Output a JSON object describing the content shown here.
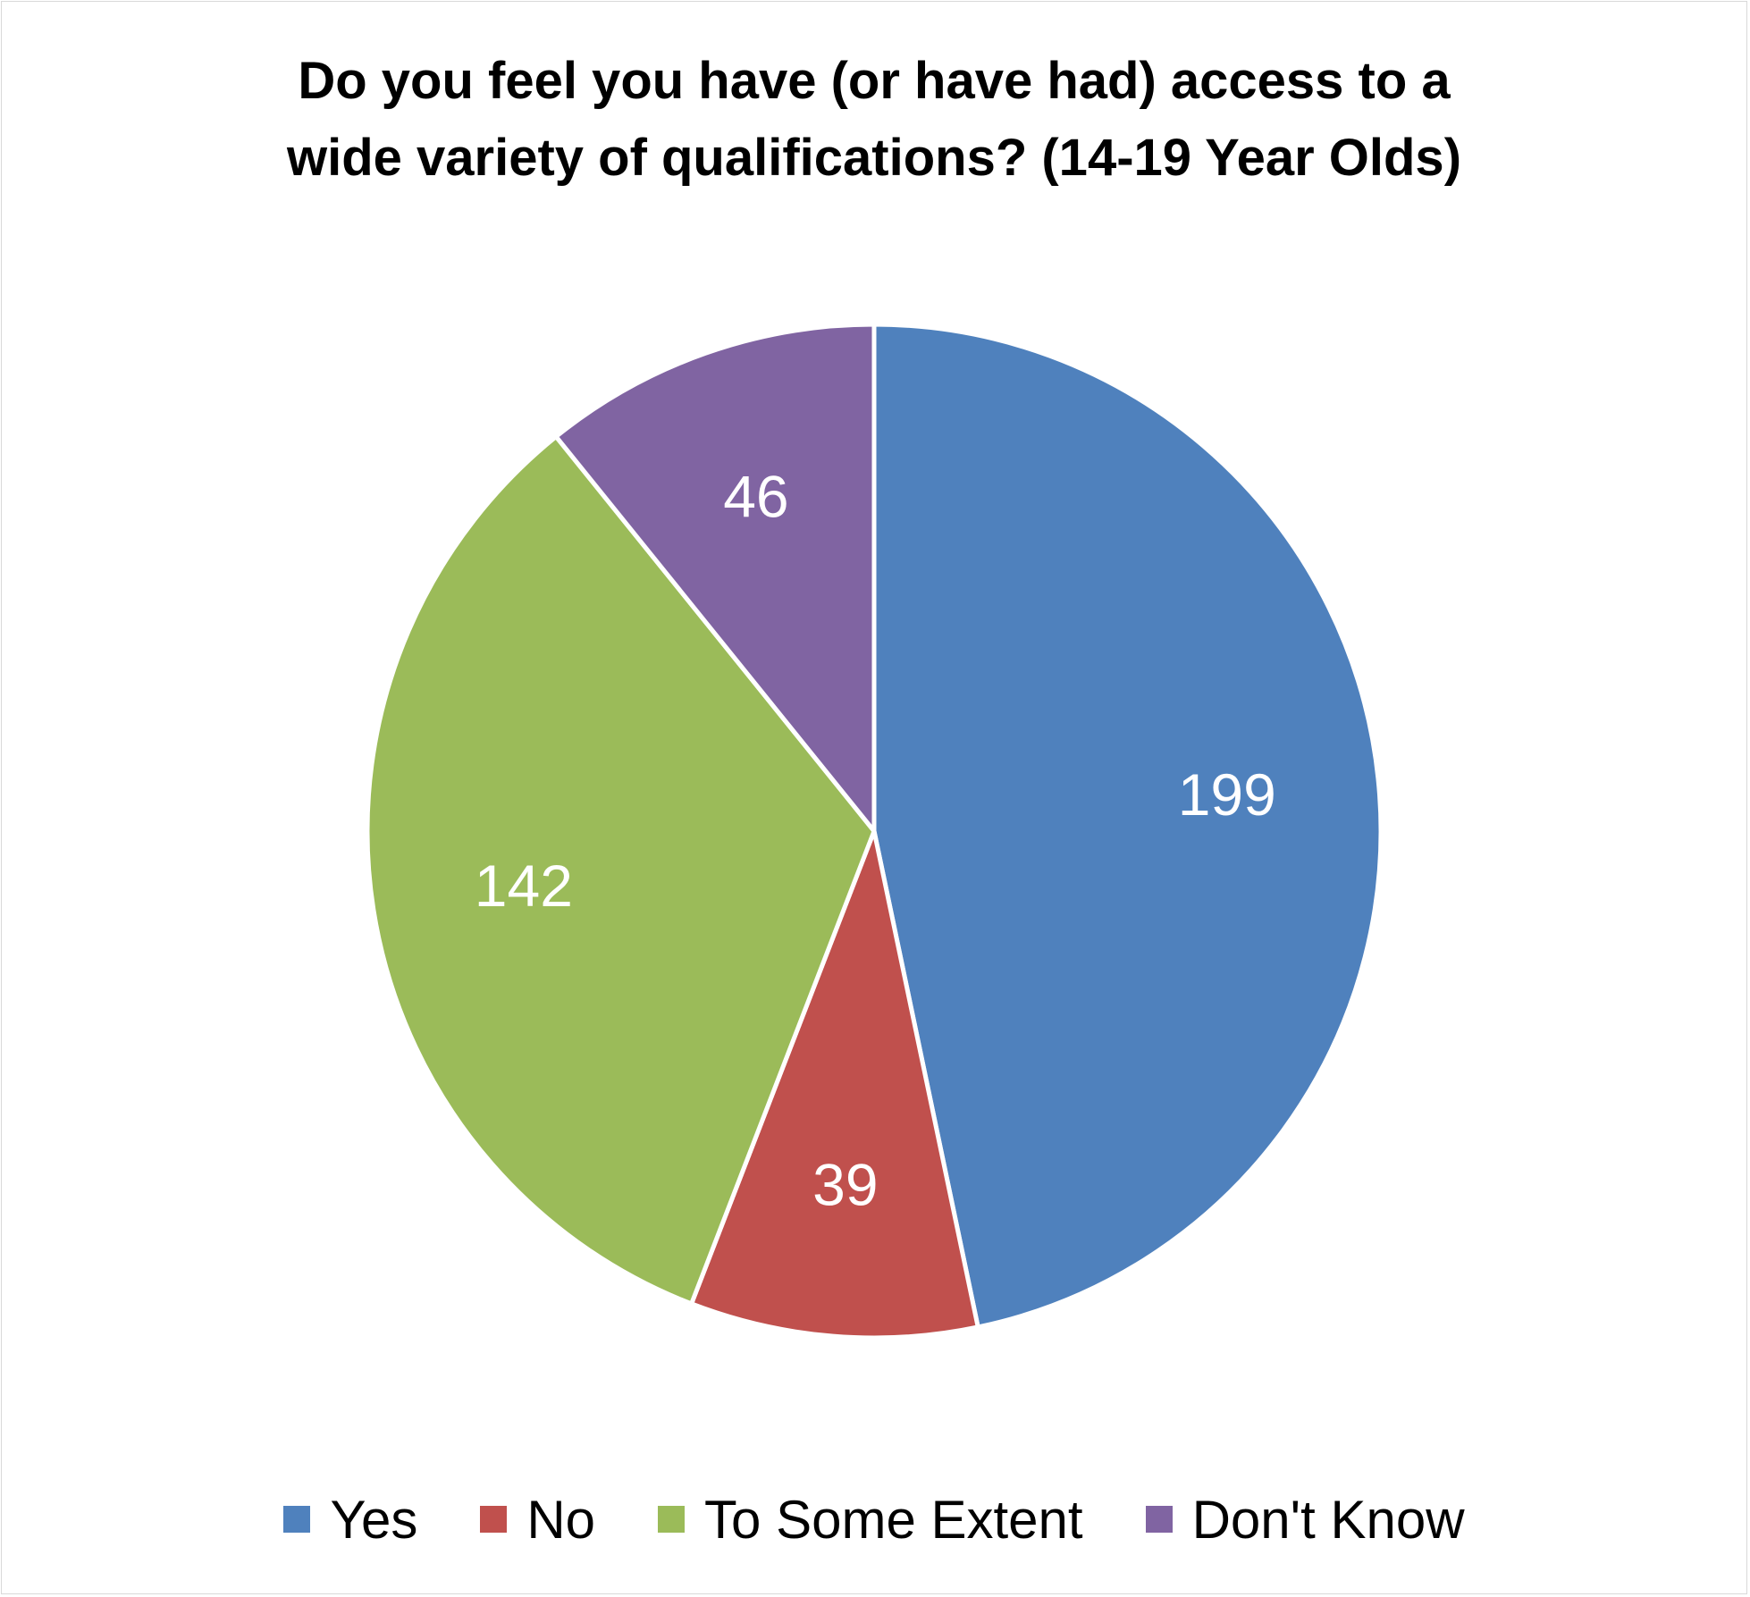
{
  "chart_data": {
    "type": "pie",
    "title": "Do you feel you have (or have had) access to a\nwide variety of qualifications? (14-19 Year Olds)",
    "categories": [
      "Yes",
      "No",
      "To Some Extent",
      "Don't Know"
    ],
    "values": [
      199,
      39,
      142,
      46
    ],
    "colors": [
      "#4F81BD",
      "#C0504D",
      "#9BBB59",
      "#8064A2"
    ],
    "data_labels": [
      "199",
      "39",
      "142",
      "46"
    ],
    "start_angle": "12 o'clock",
    "direction": "clockwise",
    "legend_position": "bottom"
  }
}
